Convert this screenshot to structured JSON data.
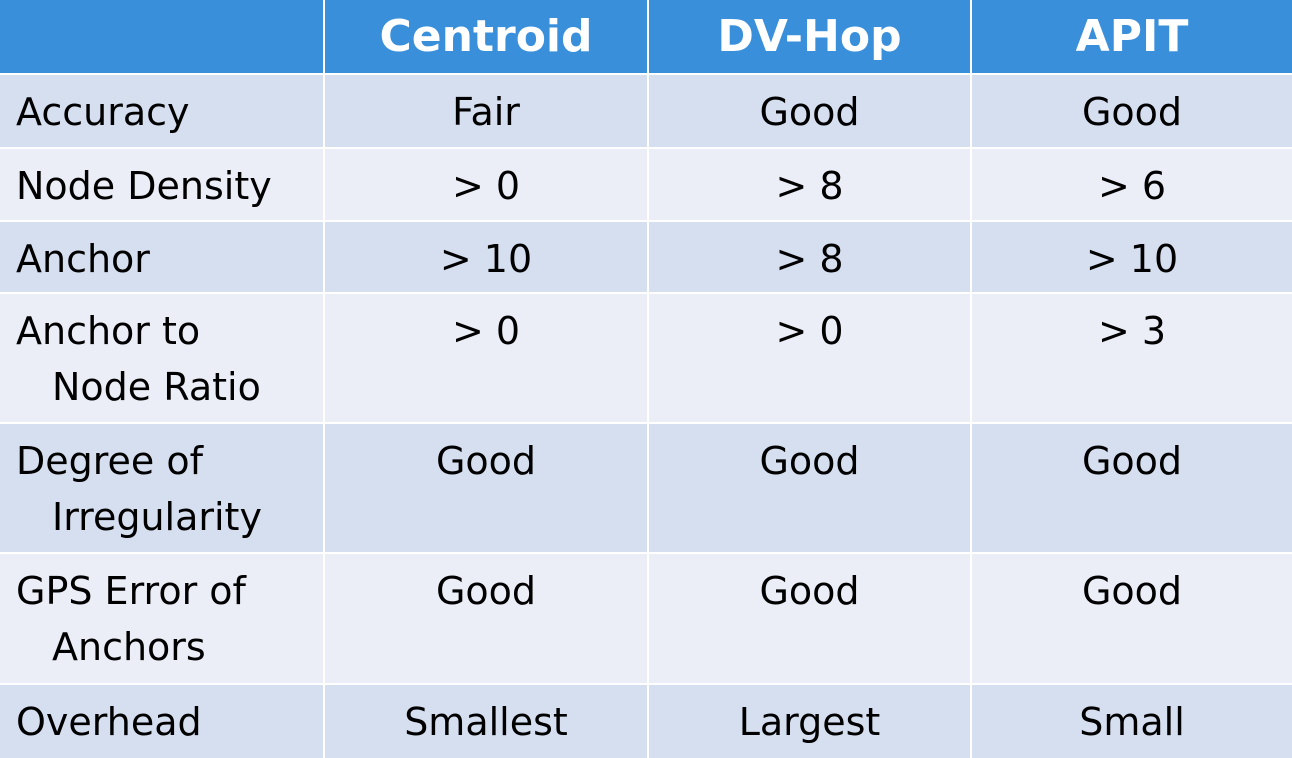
{
  "table": {
    "columns": [
      "Centroid",
      "DV-Hop",
      "APIT"
    ],
    "rows": [
      {
        "label": [
          "Accuracy"
        ],
        "cells": [
          "Fair",
          "Good",
          "Good"
        ]
      },
      {
        "label": [
          "Node Density"
        ],
        "cells": [
          "> 0",
          "> 8",
          "> 6"
        ]
      },
      {
        "label": [
          "Anchor"
        ],
        "cells": [
          "> 10",
          "> 8",
          "> 10"
        ]
      },
      {
        "label": [
          "Anchor to",
          "Node Ratio"
        ],
        "cells": [
          "> 0",
          "> 0",
          "> 3"
        ]
      },
      {
        "label": [
          "Degree of",
          "Irregularity"
        ],
        "cells": [
          "Good",
          "Good",
          "Good"
        ]
      },
      {
        "label": [
          "GPS Error of",
          "Anchors"
        ],
        "cells": [
          "Good",
          "Good",
          "Good"
        ]
      },
      {
        "label": [
          "Overhead"
        ],
        "cells": [
          "Smallest",
          "Largest",
          "Small"
        ]
      }
    ]
  }
}
